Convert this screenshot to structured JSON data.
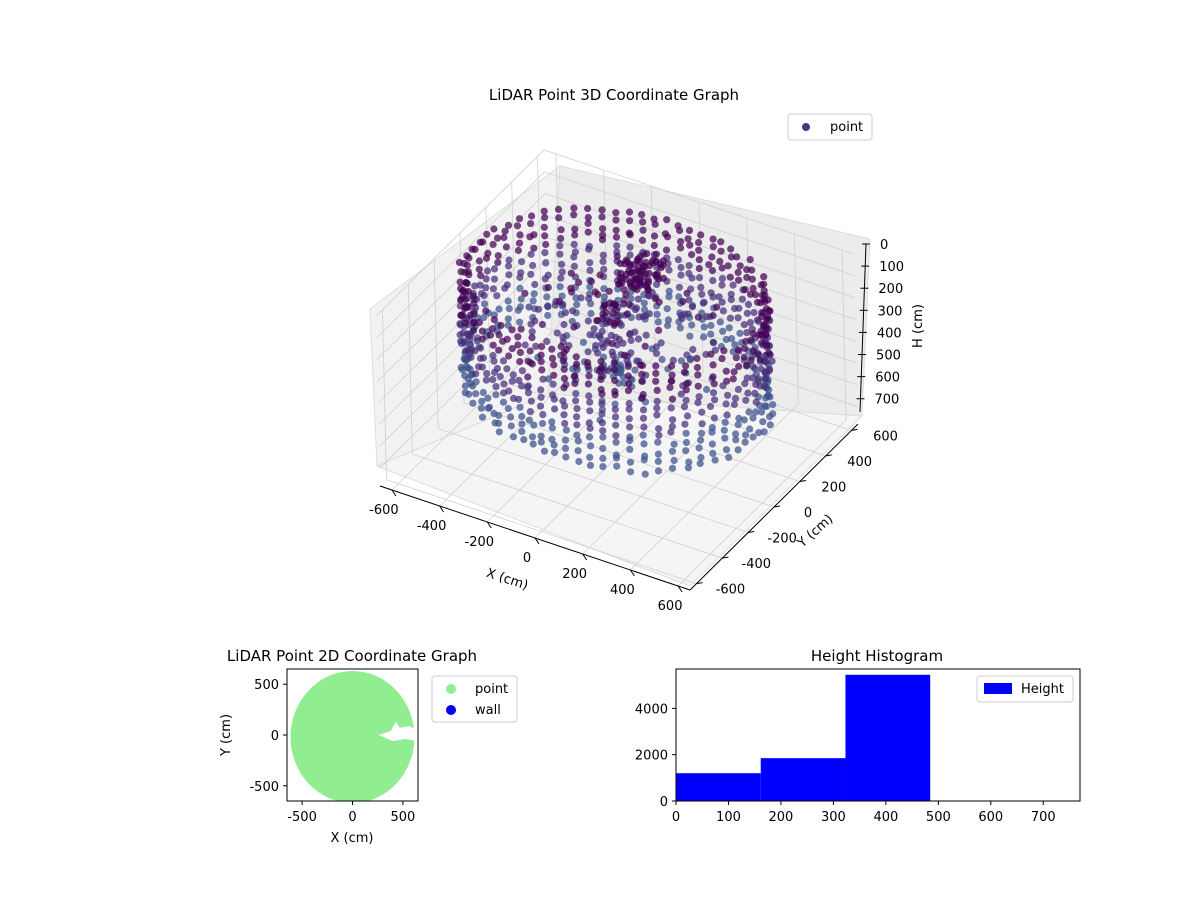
{
  "chart_data": [
    {
      "type": "scatter",
      "projection": "3d",
      "title": "LiDAR Point 3D Coordinate Graph",
      "xlabel": "X (cm)",
      "ylabel": "Y (cm)",
      "zlabel": "H (cm)",
      "xlim": [
        -650,
        650
      ],
      "ylim": [
        -650,
        650
      ],
      "zlim": [
        780,
        0
      ],
      "x_ticks": [
        -600,
        -400,
        -200,
        0,
        200,
        400,
        600
      ],
      "y_ticks": [
        -600,
        -400,
        -200,
        0,
        200,
        400,
        600
      ],
      "z_ticks": [
        0,
        100,
        200,
        300,
        400,
        500,
        600,
        700
      ],
      "z_inverted": true,
      "grid": true,
      "legend": {
        "placement": "upper-right",
        "entries": [
          "point"
        ]
      },
      "series": [
        {
          "name": "point",
          "color": "#443983",
          "colormap": "viridis (colored by height)",
          "shape": "dense cylindrical shell of points around origin, radius about 450-620 cm, heights about 0-480 cm, with denser cluster near center-top",
          "sample_points": [
            {
              "x": 600,
              "y": 0,
              "z": 420
            },
            {
              "x": 0,
              "y": 600,
              "z": 420
            },
            {
              "x": -600,
              "y": 0,
              "z": 420
            },
            {
              "x": 0,
              "y": -600,
              "z": 420
            },
            {
              "x": 450,
              "y": 450,
              "z": 200
            },
            {
              "x": -450,
              "y": 450,
              "z": 200
            },
            {
              "x": -450,
              "y": -450,
              "z": 200
            },
            {
              "x": 450,
              "y": -450,
              "z": 200
            },
            {
              "x": 0,
              "y": 0,
              "z": 100
            }
          ]
        }
      ]
    },
    {
      "type": "scatter",
      "title": "LiDAR Point 2D Coordinate Graph",
      "xlabel": "X (cm)",
      "ylabel": "Y (cm)",
      "xlim": [
        -650,
        650
      ],
      "ylim": [
        -650,
        650
      ],
      "x_ticks": [
        -500,
        0,
        500
      ],
      "y_ticks": [
        -500,
        0,
        500
      ],
      "legend": {
        "placement": "outside-right",
        "entries": [
          "point",
          "wall"
        ]
      },
      "series": [
        {
          "name": "point",
          "color": "#90ee90",
          "shape": "filled disk radius ~620 centered at origin, with a small notch near (400, 0)"
        },
        {
          "name": "wall",
          "color": "#0000ff",
          "values": []
        }
      ]
    },
    {
      "type": "bar",
      "subtype": "histogram",
      "title": "Height Histogram",
      "xlabel": "",
      "ylabel": "",
      "xlim": [
        0,
        770
      ],
      "ylim": [
        0,
        5700
      ],
      "x_ticks": [
        0,
        100,
        200,
        300,
        400,
        500,
        600,
        700
      ],
      "y_ticks": [
        0,
        2000,
        4000
      ],
      "legend": {
        "placement": "upper-right",
        "entries": [
          "Height"
        ]
      },
      "series": [
        {
          "name": "Height",
          "color": "#0000ff",
          "bins": [
            {
              "from": 0,
              "to": 161.5,
              "count": 1200
            },
            {
              "from": 161.5,
              "to": 323,
              "count": 1850
            },
            {
              "from": 323,
              "to": 484.5,
              "count": 5450
            }
          ]
        }
      ]
    }
  ]
}
